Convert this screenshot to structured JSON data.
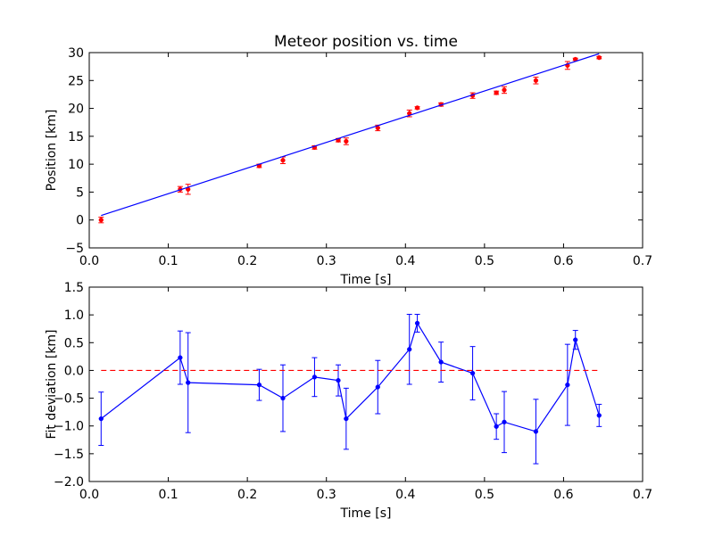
{
  "chart_data": [
    {
      "type": "scatter",
      "title": "Meteor position vs. time",
      "xlabel": "Time [s]",
      "ylabel": "Position [km]",
      "xlim": [
        0.0,
        0.7
      ],
      "ylim": [
        -5,
        30
      ],
      "xticks": [
        "0.0",
        "0.1",
        "0.2",
        "0.3",
        "0.4",
        "0.5",
        "0.6",
        "0.7"
      ],
      "yticks": [
        "−5",
        "0",
        "5",
        "10",
        "15",
        "20",
        "25",
        "30"
      ],
      "grid": false,
      "series": [
        {
          "kind": "points_with_errorbars",
          "color": "#ff0000",
          "x": [
            0.015,
            0.115,
            0.125,
            0.215,
            0.245,
            0.285,
            0.315,
            0.325,
            0.365,
            0.405,
            0.415,
            0.445,
            0.485,
            0.515,
            0.525,
            0.565,
            0.605,
            0.615,
            0.645
          ],
          "y": [
            0.0,
            5.5,
            5.5,
            9.7,
            10.7,
            13.0,
            14.3,
            14.1,
            16.5,
            19.1,
            20.1,
            20.7,
            22.3,
            22.8,
            23.3,
            25.0,
            27.7,
            28.8,
            29.1
          ],
          "yerr": [
            0.5,
            0.5,
            0.9,
            0.3,
            0.6,
            0.3,
            0.3,
            0.6,
            0.5,
            0.6,
            0.2,
            0.3,
            0.5,
            0.3,
            0.6,
            0.6,
            0.7,
            0.2,
            0.2
          ]
        },
        {
          "kind": "fit_line",
          "color": "#0000ff",
          "x": [
            0.015,
            0.645
          ],
          "y": [
            0.8,
            29.8
          ]
        }
      ]
    },
    {
      "type": "line",
      "title": "",
      "xlabel": "Time [s]",
      "ylabel": "Fit deviation [km]",
      "xlim": [
        0.0,
        0.7
      ],
      "ylim": [
        -2.0,
        1.5
      ],
      "xticks": [
        "0.0",
        "0.1",
        "0.2",
        "0.3",
        "0.4",
        "0.5",
        "0.6",
        "0.7"
      ],
      "yticks": [
        "−2.0",
        "−1.5",
        "−1.0",
        "−0.5",
        "0.0",
        "0.5",
        "1.0",
        "1.5"
      ],
      "grid": false,
      "series": [
        {
          "kind": "line_with_errorbars",
          "color": "#0000ff",
          "x": [
            0.015,
            0.115,
            0.125,
            0.215,
            0.245,
            0.285,
            0.315,
            0.325,
            0.365,
            0.405,
            0.415,
            0.445,
            0.485,
            0.515,
            0.525,
            0.565,
            0.605,
            0.615,
            0.645
          ],
          "y": [
            -0.87,
            0.23,
            -0.22,
            -0.26,
            -0.5,
            -0.12,
            -0.18,
            -0.87,
            -0.3,
            0.38,
            0.85,
            0.15,
            -0.05,
            -1.01,
            -0.93,
            -1.1,
            -0.26,
            0.55,
            -0.81
          ],
          "yerr": [
            0.48,
            0.48,
            0.9,
            0.28,
            0.6,
            0.35,
            0.28,
            0.55,
            0.48,
            0.63,
            0.16,
            0.36,
            0.48,
            0.23,
            0.55,
            0.58,
            0.73,
            0.17,
            0.2
          ]
        },
        {
          "kind": "reference_line",
          "color": "#ff0000",
          "style": "dashed",
          "x": [
            0.015,
            0.645
          ],
          "y": [
            0.0,
            0.0
          ]
        }
      ]
    }
  ]
}
